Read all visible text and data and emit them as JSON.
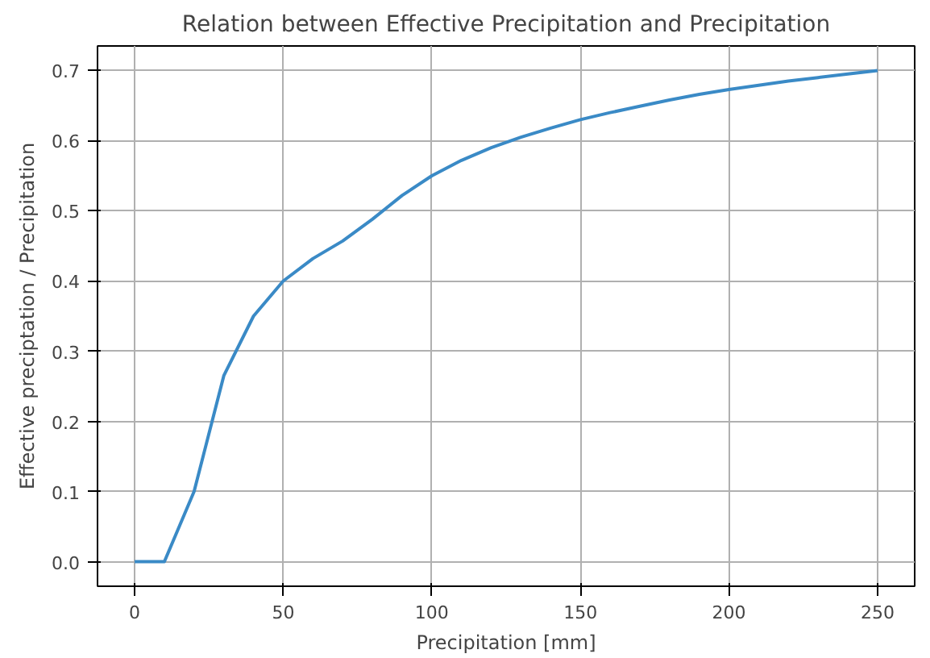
{
  "chart_data": {
    "type": "line",
    "title": "Relation between Effective Precipitation and Precipitation",
    "xlabel": "Precipitation [mm]",
    "ylabel": "Effective preciptation / Precipitation",
    "x": [
      0,
      10,
      20,
      30,
      40,
      50,
      60,
      70,
      80,
      90,
      100,
      110,
      120,
      130,
      140,
      150,
      160,
      170,
      180,
      190,
      200,
      210,
      220,
      230,
      240,
      250
    ],
    "series": [
      {
        "color": "#3a8ac6",
        "values": [
          0,
          0,
          0.1,
          0.265,
          0.35,
          0.4,
          0.432,
          0.457,
          0.488,
          0.522,
          0.55,
          0.572,
          0.59,
          0.605,
          0.618,
          0.63,
          0.64,
          0.649,
          0.658,
          0.666,
          0.673,
          0.679,
          0.685,
          0.69,
          0.695,
          0.7
        ]
      }
    ],
    "xlim": [
      -12.5,
      262.5
    ],
    "ylim": [
      -0.035,
      0.735
    ],
    "xticks": [
      0,
      50,
      100,
      150,
      200,
      250
    ],
    "yticks": [
      {
        "value": 0,
        "label": "0.0"
      },
      0.1,
      0.2,
      0.3,
      0.4,
      0.5,
      0.6,
      0.7
    ],
    "grid": true
  }
}
